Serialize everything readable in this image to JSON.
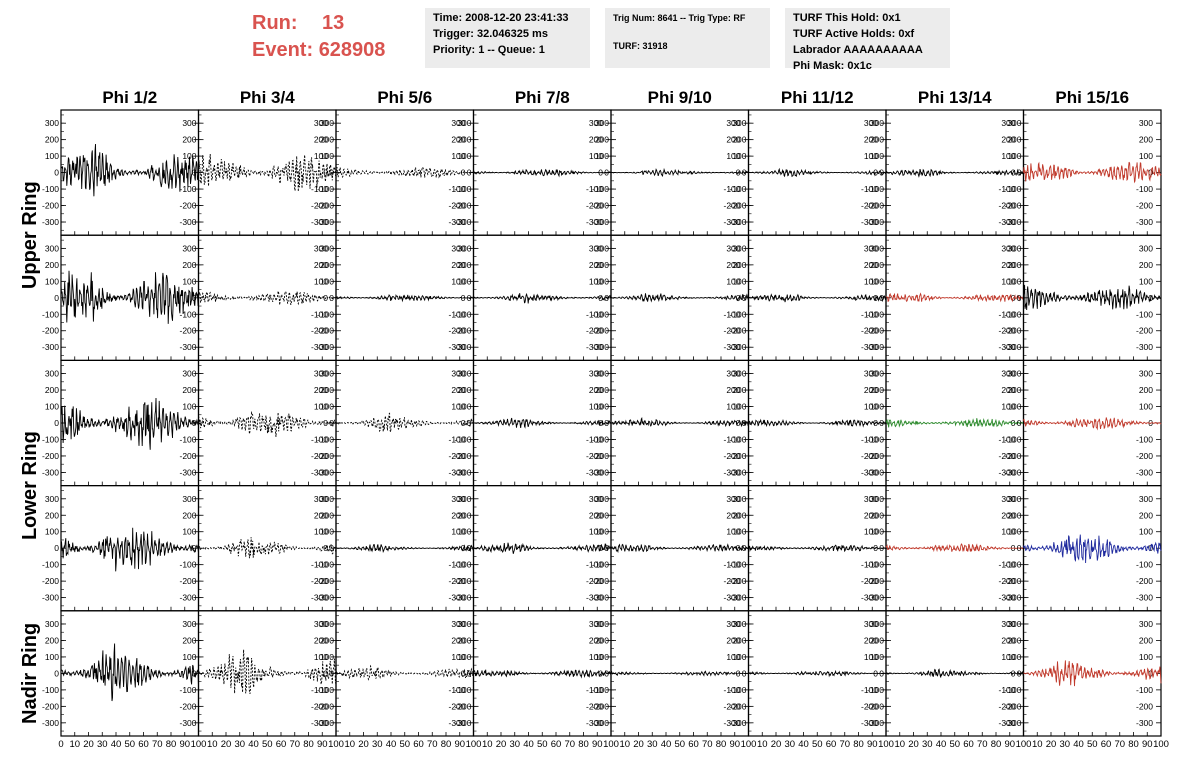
{
  "run": {
    "run_label": "Run:",
    "run_value": "13",
    "event_label": "Event:",
    "event_value": "628908"
  },
  "info_box_1": [
    "Time: 2008-12-20 23:41:33",
    "Trigger: 32.046325 ms",
    "Priority: 1 -- Queue: 1"
  ],
  "info_box_2": [
    "Trig Num: 8641 -- Trig Type: RF",
    "TURF: 31918"
  ],
  "info_box_3": [
    "TURF This Hold: 0x1",
    "TURF Active Holds: 0xf",
    "Labrador AAAAAAAAAA",
    "Phi Mask: 0x1c"
  ],
  "colors": {
    "run_text": "#d9534f",
    "box_bg": "#ececec",
    "trace": "#000000",
    "red": "#c0392b",
    "green": "#2e8b2e",
    "blue": "#1f2a9e"
  },
  "chart_data": {
    "type": "line",
    "columns": [
      "Phi 1/2",
      "Phi 3/4",
      "Phi 5/6",
      "Phi 7/8",
      "Phi 9/10",
      "Phi 11/12",
      "Phi 13/14",
      "Phi 15/16"
    ],
    "row_groups": [
      {
        "label": "Upper Ring",
        "rows": [
          0,
          1
        ]
      },
      {
        "label": "Lower Ring",
        "rows": [
          2,
          3
        ]
      },
      {
        "label": "Nadir Ring",
        "rows": [
          4
        ]
      }
    ],
    "xlim": [
      0,
      100
    ],
    "ylim": [
      -380,
      380
    ],
    "x_ticks": [
      0,
      10,
      20,
      30,
      40,
      50,
      60,
      70,
      80,
      90,
      100
    ],
    "y_ticks": [
      300,
      200,
      100,
      0,
      -100,
      -200,
      -300
    ],
    "grid": false,
    "panels": [
      [
        {
          "amp": 120,
          "style": "solid",
          "color": "trace"
        },
        {
          "amp": 110,
          "style": "dashed",
          "color": "trace"
        },
        {
          "amp": 35,
          "style": "dashed",
          "color": "trace"
        },
        {
          "amp": 20,
          "style": "solid",
          "color": "trace"
        },
        {
          "amp": 15,
          "style": "solid",
          "color": "trace"
        },
        {
          "amp": 15,
          "style": "solid",
          "color": "trace"
        },
        {
          "amp": 18,
          "style": "solid",
          "color": "trace"
        },
        {
          "amp": 60,
          "style": "solid",
          "color": "red"
        }
      ],
      [
        {
          "amp": 160,
          "style": "solid",
          "color": "trace"
        },
        {
          "amp": 45,
          "style": "dashed",
          "color": "trace"
        },
        {
          "amp": 18,
          "style": "solid",
          "color": "trace"
        },
        {
          "amp": 22,
          "style": "solid",
          "color": "trace"
        },
        {
          "amp": 20,
          "style": "solid",
          "color": "trace"
        },
        {
          "amp": 18,
          "style": "solid",
          "color": "trace"
        },
        {
          "amp": 25,
          "style": "solid",
          "color": "red"
        },
        {
          "amp": 80,
          "style": "solid",
          "color": "trace"
        }
      ],
      [
        {
          "amp": 150,
          "style": "solid",
          "color": "trace"
        },
        {
          "amp": 80,
          "style": "dashed",
          "color": "trace"
        },
        {
          "amp": 40,
          "style": "dashed",
          "color": "trace"
        },
        {
          "amp": 20,
          "style": "solid",
          "color": "trace"
        },
        {
          "amp": 18,
          "style": "solid",
          "color": "trace"
        },
        {
          "amp": 18,
          "style": "solid",
          "color": "trace"
        },
        {
          "amp": 28,
          "style": "solid",
          "color": "green"
        },
        {
          "amp": 35,
          "style": "solid",
          "color": "red"
        }
      ],
      [
        {
          "amp": 130,
          "style": "solid",
          "color": "trace"
        },
        {
          "amp": 50,
          "style": "dashed",
          "color": "trace"
        },
        {
          "amp": 15,
          "style": "solid",
          "color": "trace"
        },
        {
          "amp": 25,
          "style": "solid",
          "color": "trace"
        },
        {
          "amp": 22,
          "style": "solid",
          "color": "trace"
        },
        {
          "amp": 20,
          "style": "solid",
          "color": "trace"
        },
        {
          "amp": 25,
          "style": "solid",
          "color": "red"
        },
        {
          "amp": 90,
          "style": "solid",
          "color": "blue"
        }
      ],
      [
        {
          "amp": 120,
          "style": "solid",
          "color": "trace"
        },
        {
          "amp": 90,
          "style": "dashed",
          "color": "trace"
        },
        {
          "amp": 30,
          "style": "dashed",
          "color": "trace"
        },
        {
          "amp": 22,
          "style": "solid",
          "color": "trace"
        },
        {
          "amp": 12,
          "style": "solid",
          "color": "trace"
        },
        {
          "amp": 15,
          "style": "solid",
          "color": "trace"
        },
        {
          "amp": 18,
          "style": "solid",
          "color": "trace"
        },
        {
          "amp": 60,
          "style": "solid",
          "color": "red"
        }
      ]
    ]
  }
}
